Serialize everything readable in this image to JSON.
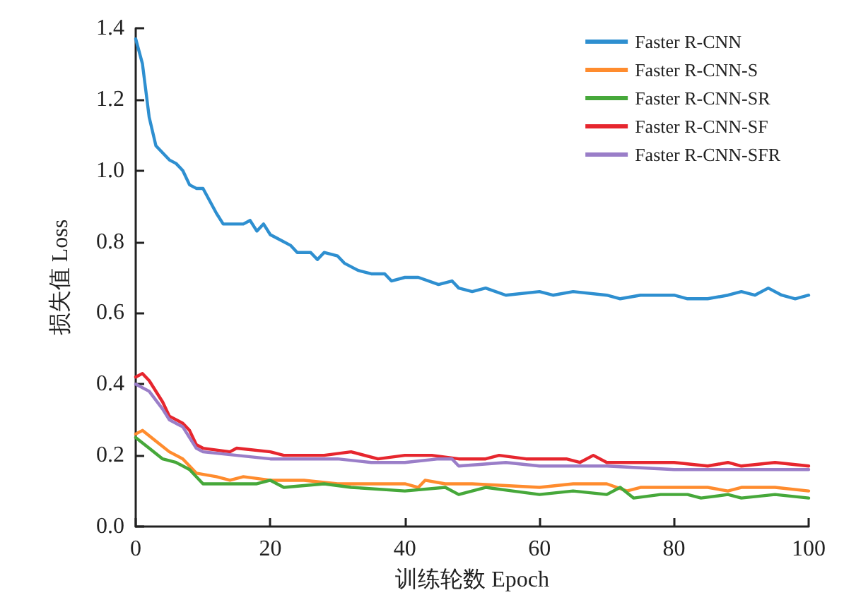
{
  "chart_data": {
    "type": "line",
    "xlabel": "训练轮数 Epoch",
    "ylabel": "损失值 Loss",
    "xlim": [
      0,
      100
    ],
    "xticks": [
      0,
      20,
      40,
      60,
      80,
      100
    ],
    "ylim": [
      0,
      1.4
    ],
    "yticks": [
      {
        "value": 0,
        "label": "0.0"
      },
      0.2,
      0.4,
      0.6,
      0.8,
      {
        "value": 1,
        "label": "1.0"
      },
      1.2,
      1.4
    ],
    "grid": false,
    "legend": "top right",
    "marker": "none",
    "line_style": "solid",
    "series": [
      {
        "name": "Faster R-CNN",
        "color": "#2e8fd0",
        "x": [
          0,
          1,
          2,
          3,
          5,
          6,
          7,
          8,
          9,
          10,
          12,
          13,
          16,
          17,
          18,
          19,
          20,
          21,
          23,
          24,
          26,
          27,
          28,
          30,
          31,
          33,
          35,
          37,
          38,
          40,
          42,
          45,
          47,
          48,
          50,
          52,
          55,
          60,
          62,
          65,
          70,
          72,
          75,
          80,
          82,
          85,
          88,
          90,
          92,
          94,
          96,
          98,
          100
        ],
        "values": [
          1.37,
          1.3,
          1.15,
          1.07,
          1.03,
          1.02,
          1.0,
          0.96,
          0.95,
          0.95,
          0.88,
          0.85,
          0.85,
          0.86,
          0.83,
          0.85,
          0.82,
          0.81,
          0.79,
          0.77,
          0.77,
          0.75,
          0.77,
          0.76,
          0.74,
          0.72,
          0.71,
          0.71,
          0.69,
          0.7,
          0.7,
          0.68,
          0.69,
          0.67,
          0.66,
          0.67,
          0.65,
          0.66,
          0.65,
          0.66,
          0.65,
          0.64,
          0.65,
          0.65,
          0.64,
          0.64,
          0.65,
          0.66,
          0.65,
          0.67,
          0.65,
          0.64,
          0.65
        ]
      },
      {
        "name": "Faster R-CNN-S",
        "color": "#ff8c2e",
        "x": [
          0,
          1,
          3,
          5,
          7,
          9,
          12,
          14,
          16,
          20,
          25,
          30,
          35,
          40,
          42,
          43,
          46,
          50,
          60,
          65,
          70,
          73,
          75,
          80,
          85,
          88,
          90,
          95,
          100
        ],
        "values": [
          0.26,
          0.27,
          0.24,
          0.21,
          0.19,
          0.15,
          0.14,
          0.13,
          0.14,
          0.13,
          0.13,
          0.12,
          0.12,
          0.12,
          0.11,
          0.13,
          0.12,
          0.12,
          0.11,
          0.12,
          0.12,
          0.1,
          0.11,
          0.11,
          0.11,
          0.1,
          0.11,
          0.11,
          0.1
        ]
      },
      {
        "name": "Faster R-CNN-SR",
        "color": "#46a83a",
        "x": [
          0,
          2,
          4,
          6,
          8,
          10,
          14,
          18,
          20,
          22,
          28,
          32,
          40,
          46,
          48,
          52,
          56,
          60,
          65,
          70,
          72,
          74,
          78,
          82,
          84,
          88,
          90,
          95,
          100
        ],
        "values": [
          0.25,
          0.22,
          0.19,
          0.18,
          0.16,
          0.12,
          0.12,
          0.12,
          0.13,
          0.11,
          0.12,
          0.11,
          0.1,
          0.11,
          0.09,
          0.11,
          0.1,
          0.09,
          0.1,
          0.09,
          0.11,
          0.08,
          0.09,
          0.09,
          0.08,
          0.09,
          0.08,
          0.09,
          0.08
        ]
      },
      {
        "name": "Faster R-CNN-SF",
        "color": "#e6262e",
        "x": [
          0,
          1,
          2,
          4,
          5,
          7,
          8,
          9,
          10,
          14,
          15,
          20,
          22,
          25,
          28,
          32,
          36,
          40,
          44,
          48,
          52,
          54,
          58,
          60,
          64,
          66,
          68,
          70,
          75,
          80,
          85,
          88,
          90,
          95,
          100
        ],
        "values": [
          0.42,
          0.43,
          0.41,
          0.35,
          0.31,
          0.29,
          0.27,
          0.23,
          0.22,
          0.21,
          0.22,
          0.21,
          0.2,
          0.2,
          0.2,
          0.21,
          0.19,
          0.2,
          0.2,
          0.19,
          0.19,
          0.2,
          0.19,
          0.19,
          0.19,
          0.18,
          0.2,
          0.18,
          0.18,
          0.18,
          0.17,
          0.18,
          0.17,
          0.18,
          0.17
        ]
      },
      {
        "name": "Faster R-CNN-SFR",
        "color": "#9a7ec8",
        "x": [
          0,
          2,
          4,
          5,
          7,
          9,
          10,
          15,
          20,
          25,
          30,
          35,
          40,
          45,
          47,
          48,
          55,
          60,
          70,
          80,
          90,
          100
        ],
        "values": [
          0.4,
          0.38,
          0.33,
          0.3,
          0.28,
          0.22,
          0.21,
          0.2,
          0.19,
          0.19,
          0.19,
          0.18,
          0.18,
          0.19,
          0.19,
          0.17,
          0.18,
          0.17,
          0.17,
          0.16,
          0.16,
          0.16
        ]
      }
    ]
  }
}
